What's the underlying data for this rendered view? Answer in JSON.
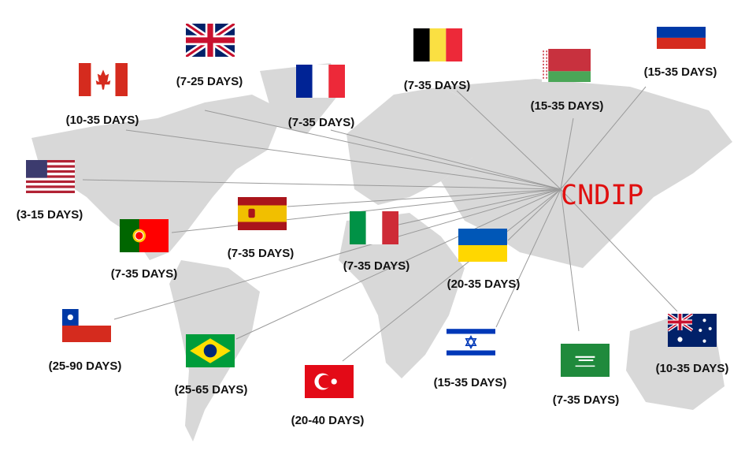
{
  "hub": {
    "label": "CNDIP",
    "color": "#e01010"
  },
  "map_color": "#d8d8d8",
  "line_color": "#9a9a9a",
  "destinations": [
    {
      "country": "United Kingdom",
      "flag": "uk-flag",
      "days": "(7-25 DAYS)"
    },
    {
      "country": "Canada",
      "flag": "canada-flag",
      "days": "(10-35 DAYS)"
    },
    {
      "country": "France",
      "flag": "france-flag",
      "days": "(7-35 DAYS)"
    },
    {
      "country": "Belgium",
      "flag": "belgium-flag",
      "days": "(7-35 DAYS)"
    },
    {
      "country": "Belarus",
      "flag": "belarus-flag",
      "days": "(15-35 DAYS)"
    },
    {
      "country": "Russia",
      "flag": "russia-flag",
      "days": "(15-35 DAYS)"
    },
    {
      "country": "United States",
      "flag": "usa-flag",
      "days": "(3-15 DAYS)"
    },
    {
      "country": "Spain",
      "flag": "spain-flag",
      "days": "(7-35 DAYS)"
    },
    {
      "country": "Portugal",
      "flag": "portugal-flag",
      "days": "(7-35 DAYS)"
    },
    {
      "country": "Italy",
      "flag": "italy-flag",
      "days": "(7-35 DAYS)"
    },
    {
      "country": "Ukraine",
      "flag": "ukraine-flag",
      "days": "(20-35 DAYS)"
    },
    {
      "country": "Chile",
      "flag": "chile-flag",
      "days": "(25-90 DAYS)"
    },
    {
      "country": "Brazil",
      "flag": "brazil-flag",
      "days": "(25-65 DAYS)"
    },
    {
      "country": "Turkey",
      "flag": "turkey-flag",
      "days": "(20-40 DAYS)"
    },
    {
      "country": "Israel",
      "flag": "israel-flag",
      "days": "(15-35 DAYS)"
    },
    {
      "country": "Saudi Arabia",
      "flag": "saudi-flag",
      "days": "(7-35 DAYS)"
    },
    {
      "country": "Australia",
      "flag": "australia-flag",
      "days": "(10-35 DAYS)"
    }
  ]
}
